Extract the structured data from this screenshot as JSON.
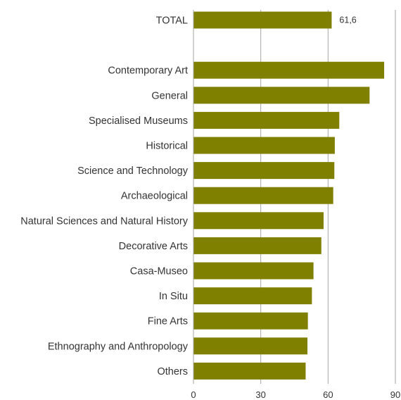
{
  "chart_data": {
    "type": "bar",
    "orientation": "horizontal",
    "categories": [
      "TOTAL",
      "",
      "Contemporary Art",
      "General",
      "Specialised Museums",
      "Historical",
      "Science and Technology",
      "Archaeological",
      "Natural Sciences and Natural History",
      "Decorative Arts",
      "Casa-Museo",
      "In Situ",
      "Fine Arts",
      "Ethnography and Anthropology",
      "Others"
    ],
    "values": [
      61.6,
      null,
      85,
      78.5,
      65,
      63,
      62.8,
      62.3,
      58,
      57,
      53.5,
      52.8,
      51,
      50.8,
      50
    ],
    "data_labels": [
      "61,6",
      "",
      "",
      "",
      "",
      "",
      "",
      "",
      "",
      "",
      "",
      "",
      "",
      "",
      ""
    ],
    "xlim": [
      0,
      90
    ],
    "xticks": [
      0,
      30,
      60,
      90
    ],
    "xtick_labels": [
      "0",
      "30",
      "60",
      "90"
    ],
    "grid": true,
    "bar_color": "#808000",
    "title": "",
    "xlabel": "",
    "ylabel": ""
  }
}
